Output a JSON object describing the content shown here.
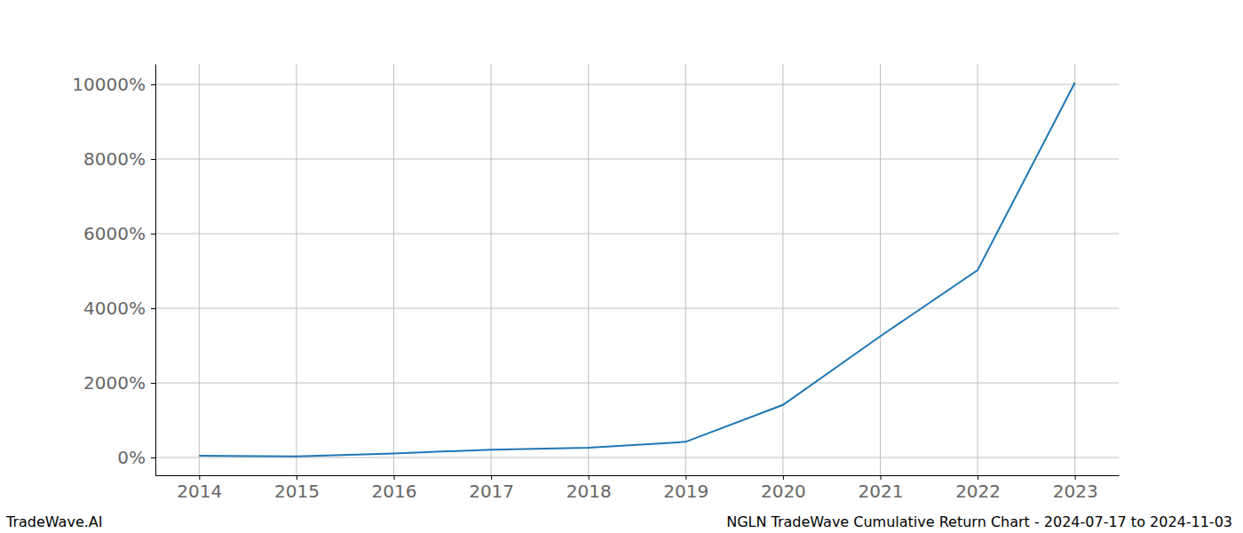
{
  "chart_data": {
    "type": "line",
    "title": "NGLN TradeWave Cumulative Return Chart - 2024-07-17 to 2024-11-03",
    "annotations": [
      "TradeWave.AI"
    ],
    "x": [
      2014,
      2015,
      2016,
      2017,
      2018,
      2019,
      2020,
      2021,
      2022,
      2023
    ],
    "values": [
      50,
      30,
      110,
      210,
      260,
      420,
      1410,
      3250,
      5020,
      10050
    ],
    "color": "#1f77b4",
    "xlim": [
      2013.55,
      2023.45
    ],
    "xticks": [
      2014,
      2015,
      2016,
      2017,
      2018,
      2019,
      2020,
      2021,
      2022,
      2023
    ],
    "ylim": [
      -476,
      10548
    ],
    "yticks": [
      {
        "value": 0,
        "label": "0%"
      },
      {
        "value": 2000,
        "label": "2000%"
      },
      {
        "value": 4000,
        "label": "4000%"
      },
      {
        "value": 6000,
        "label": "6000%"
      },
      {
        "value": 8000,
        "label": "8000%"
      },
      {
        "value": 10000,
        "label": "10000%"
      }
    ],
    "grid": true
  }
}
